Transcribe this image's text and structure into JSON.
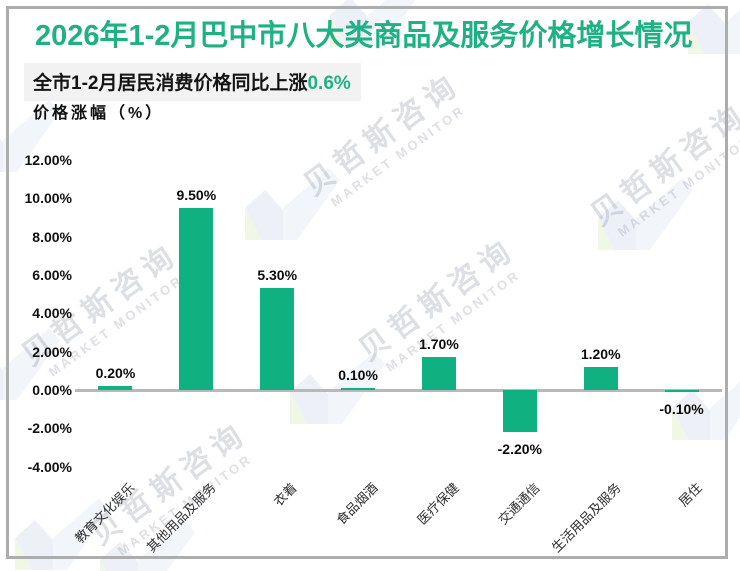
{
  "title": "2026年1-2月巴中市八大类商品及服务价格增长情况",
  "subtitle": {
    "prefix": "全市1-2月居民消费价格同比上涨",
    "highlight": "0.6%"
  },
  "axis_title": "价格涨幅（%）",
  "watermark": {
    "cn": "贝哲斯咨询",
    "en": "MARKET MONITOR",
    "logo_name": "market-monitor-logo"
  },
  "colors": {
    "accent_green": "#1fb184",
    "bar_green": "#10b181",
    "axis_line_gray": "#b8b8b8",
    "subtitle_bg": "#f2f2f2",
    "frame_gray": "#adadad"
  },
  "chart_data": {
    "type": "bar",
    "title": "2026年1-2月巴中市八大类商品及服务价格增长情况",
    "xlabel": "",
    "ylabel": "价格涨幅（%）",
    "categories": [
      "教育文化娱乐",
      "其他用品及服务",
      "衣着",
      "食品烟酒",
      "医疗保健",
      "交通通信",
      "生活用品及服务",
      "居住"
    ],
    "values": [
      0.2,
      9.5,
      5.3,
      0.1,
      1.7,
      -2.2,
      1.2,
      -0.1
    ],
    "value_labels": [
      "0.20%",
      "9.50%",
      "5.30%",
      "0.10%",
      "1.70%",
      "-2.20%",
      "1.20%",
      "-0.10%"
    ],
    "ylim": [
      -4,
      12
    ],
    "yticks": [
      12,
      10,
      8,
      6,
      4,
      2,
      0,
      -2,
      -4
    ],
    "ytick_labels": [
      "12.00%",
      "10.00%",
      "8.00%",
      "6.00%",
      "4.00%",
      "2.00%",
      "0.00%",
      "-2.00%",
      "-4.00%"
    ],
    "grid": false,
    "legend": false,
    "bar_color": "#10b181"
  }
}
